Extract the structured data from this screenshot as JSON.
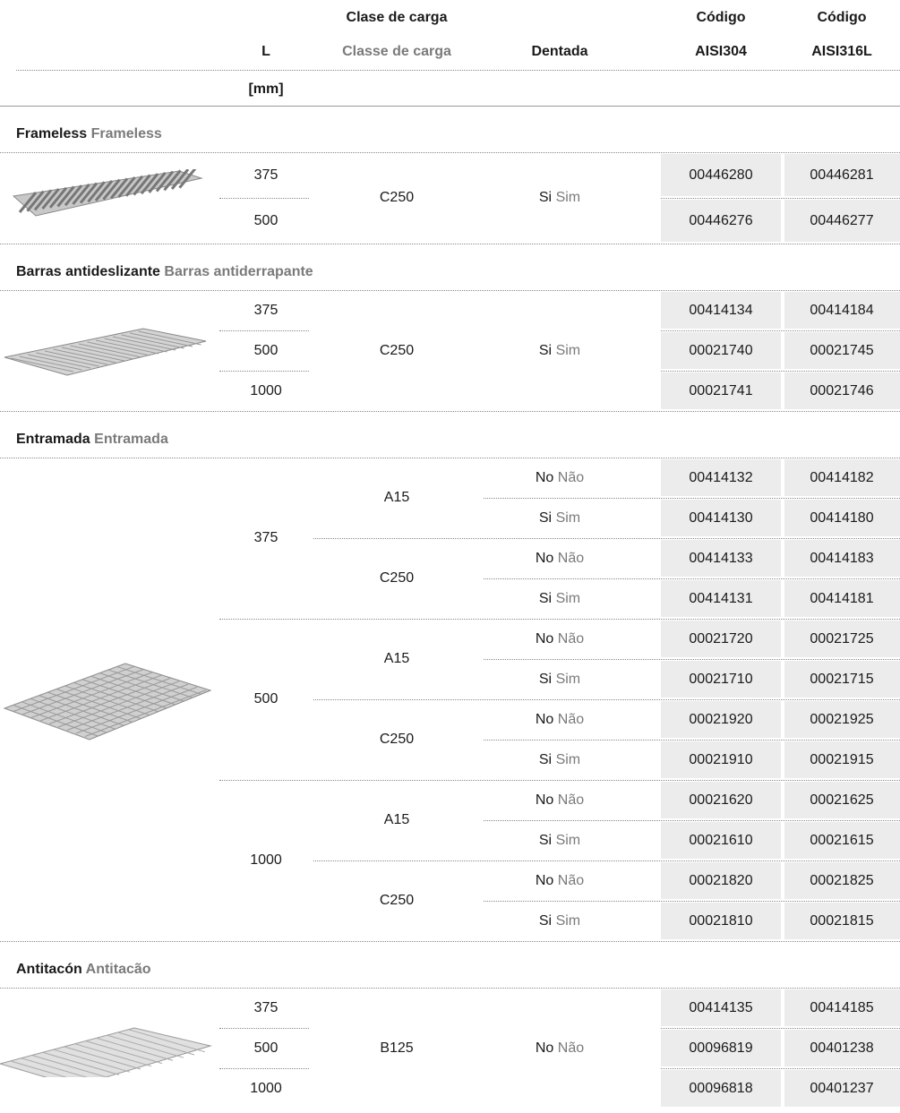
{
  "header": {
    "l": "L",
    "unit": "[mm]",
    "clase_es": "Clase de carga",
    "clase_pt": "Classe de carga",
    "dentada": "Dentada",
    "codigo_304": "Código",
    "aisi304": "AISI304",
    "codigo_316": "Código",
    "aisi316": "AISI316L"
  },
  "sections": [
    {
      "title_es": "Frameless",
      "title_pt": "Frameless",
      "clase": "C250",
      "dentada_es": "Si",
      "dentada_pt": "Sim",
      "rows": [
        {
          "l": "375",
          "aisi304": "00446280",
          "aisi316": "00446281"
        },
        {
          "l": "500",
          "aisi304": "00446276",
          "aisi316": "00446277"
        }
      ]
    },
    {
      "title_es": "Barras antideslizante",
      "title_pt": "Barras antiderrapante",
      "clase": "C250",
      "dentada_es": "Si",
      "dentada_pt": "Sim",
      "rows": [
        {
          "l": "375",
          "aisi304": "00414134",
          "aisi316": "00414184"
        },
        {
          "l": "500",
          "aisi304": "00021740",
          "aisi316": "00021745"
        },
        {
          "l": "1000",
          "aisi304": "00021741",
          "aisi316": "00021746"
        }
      ]
    },
    {
      "title_es": "Entramada",
      "title_pt": "Entramada",
      "groups": [
        {
          "l": "375",
          "classes": [
            {
              "clase": "A15",
              "variants": [
                {
                  "dentada_es": "No",
                  "dentada_pt": "Não",
                  "aisi304": "00414132",
                  "aisi316": "00414182"
                },
                {
                  "dentada_es": "Si",
                  "dentada_pt": "Sim",
                  "aisi304": "00414130",
                  "aisi316": "00414180"
                }
              ]
            },
            {
              "clase": "C250",
              "variants": [
                {
                  "dentada_es": "No",
                  "dentada_pt": "Não",
                  "aisi304": "00414133",
                  "aisi316": "00414183"
                },
                {
                  "dentada_es": "Si",
                  "dentada_pt": "Sim",
                  "aisi304": "00414131",
                  "aisi316": "00414181"
                }
              ]
            }
          ]
        },
        {
          "l": "500",
          "classes": [
            {
              "clase": "A15",
              "variants": [
                {
                  "dentada_es": "No",
                  "dentada_pt": "Não",
                  "aisi304": "00021720",
                  "aisi316": "00021725"
                },
                {
                  "dentada_es": "Si",
                  "dentada_pt": "Sim",
                  "aisi304": "00021710",
                  "aisi316": "00021715"
                }
              ]
            },
            {
              "clase": "C250",
              "variants": [
                {
                  "dentada_es": "No",
                  "dentada_pt": "Não",
                  "aisi304": "00021920",
                  "aisi316": "00021925"
                },
                {
                  "dentada_es": "Si",
                  "dentada_pt": "Sim",
                  "aisi304": "00021910",
                  "aisi316": "00021915"
                }
              ]
            }
          ]
        },
        {
          "l": "1000",
          "classes": [
            {
              "clase": "A15",
              "variants": [
                {
                  "dentada_es": "No",
                  "dentada_pt": "Não",
                  "aisi304": "00021620",
                  "aisi316": "00021625"
                },
                {
                  "dentada_es": "Si",
                  "dentada_pt": "Sim",
                  "aisi304": "00021610",
                  "aisi316": "00021615"
                }
              ]
            },
            {
              "clase": "C250",
              "variants": [
                {
                  "dentada_es": "No",
                  "dentada_pt": "Não",
                  "aisi304": "00021820",
                  "aisi316": "00021825"
                },
                {
                  "dentada_es": "Si",
                  "dentada_pt": "Sim",
                  "aisi304": "00021810",
                  "aisi316": "00021815"
                }
              ]
            }
          ]
        }
      ]
    },
    {
      "title_es": "Antitacón",
      "title_pt": "Antitacão",
      "clase": "B125",
      "dentada_es": "No",
      "dentada_pt": "Não",
      "rows": [
        {
          "l": "375",
          "aisi304": "00414135",
          "aisi316": "00414185"
        },
        {
          "l": "500",
          "aisi304": "00096819",
          "aisi316": "00401238"
        },
        {
          "l": "1000",
          "aisi304": "00096818",
          "aisi316": "00401237"
        }
      ]
    }
  ]
}
